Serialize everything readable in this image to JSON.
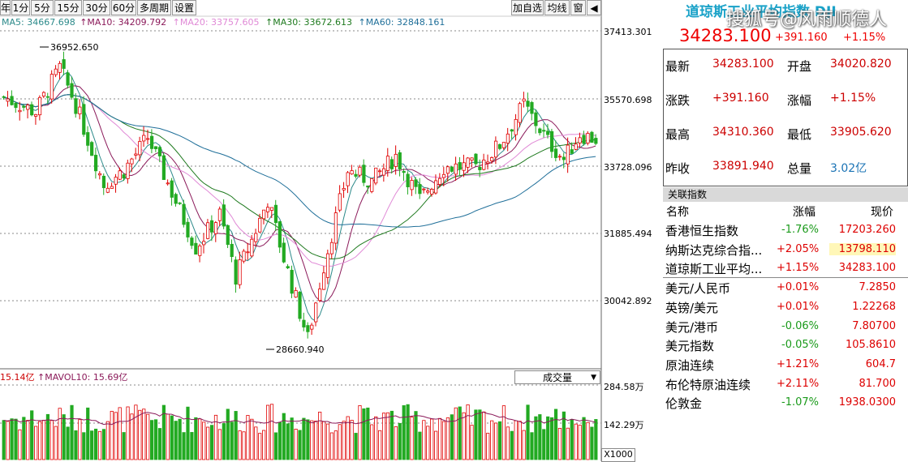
{
  "toolbar": {
    "tabs": [
      "年",
      "1分",
      "5分",
      "15分",
      "30分",
      "60分",
      "多周期",
      "设置"
    ],
    "right_buttons": [
      "加自选",
      "均线",
      "窗"
    ]
  },
  "ma_legend": [
    {
      "label": "MA5: 34667.698",
      "color": "#2c8a8a"
    },
    {
      "label": "MA10: 34209.792",
      "color": "#8b1a5a"
    },
    {
      "label": "MA20: 33757.605",
      "color": "#e089d6"
    },
    {
      "label": "MA30: 33672.613",
      "color": "#1f7a1f"
    },
    {
      "label": "MA60: 32848.161",
      "color": "#1f6f99"
    }
  ],
  "price_axis": [
    "37413.301",
    "35570.698",
    "33728.096",
    "31885.494",
    "30042.892"
  ],
  "annotations": {
    "high": "36952.650",
    "low": "28660.940"
  },
  "volume": {
    "legend_left": "15.14亿",
    "legend_mavol": "MAVOL10: 15.69亿",
    "dropdown": "成交量",
    "axis": [
      "284.58万",
      "142.29万"
    ],
    "unit": "X1000"
  },
  "colors": {
    "up": "#e00000",
    "down": "#22aa22",
    "accent": "#1aa2c8"
  },
  "index": {
    "title": "道琼斯工业平均指数 DJI",
    "price": "34283.100",
    "change": "+391.160",
    "pct": "+1.15%"
  },
  "watermark": "搜狐号@风雨顺德人",
  "quote": [
    {
      "l1": "最新",
      "v1": "34283.100",
      "l2": "开盘",
      "v2": "34020.820"
    },
    {
      "l1": "涨跌",
      "v1": "+391.160",
      "l2": "涨幅",
      "v2": "+1.15%"
    },
    {
      "l1": "最高",
      "v1": "34310.360",
      "l2": "最低",
      "v2": "33905.620"
    },
    {
      "l1": "昨收",
      "v1": "33891.940",
      "l2": "总量",
      "v2": "3.02亿"
    }
  ],
  "related": {
    "header": "关联指数",
    "col_name": "名称",
    "col_chg": "涨幅",
    "col_price": "现价",
    "rows": [
      {
        "name": "香港恒生指数",
        "chg": "-1.76%",
        "price": "17203.260",
        "up": false
      },
      {
        "name": "纳斯达克综合指...",
        "chg": "+2.05%",
        "price": "13798.110",
        "up": true,
        "hl": true
      },
      {
        "name": "道琼斯工业平均...",
        "chg": "+1.15%",
        "price": "34283.100",
        "up": true
      },
      {
        "name": "美元/人民币",
        "chg": "+0.01%",
        "price": "7.2850",
        "up": true
      },
      {
        "name": "英镑/美元",
        "chg": "+0.01%",
        "price": "1.22268",
        "up": true
      },
      {
        "name": "美元/港币",
        "chg": "-0.06%",
        "price": "7.80700",
        "up": false
      },
      {
        "name": "美元指数",
        "chg": "-0.05%",
        "price": "105.8610",
        "up": false
      },
      {
        "name": "原油连续",
        "chg": "+1.21%",
        "price": "604.7",
        "up": true
      },
      {
        "name": "布伦特原油连续",
        "chg": "+2.11%",
        "price": "81.700",
        "up": true
      },
      {
        "name": "伦敦金",
        "chg": "-1.07%",
        "price": "1938.0300",
        "up": false
      }
    ]
  }
}
